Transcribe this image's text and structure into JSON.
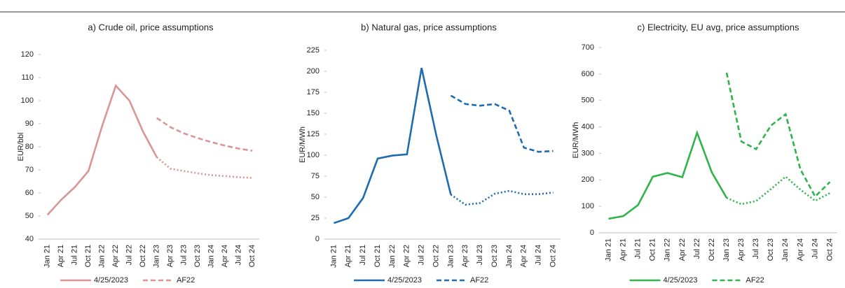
{
  "chart_data": [
    {
      "type": "line",
      "title": "a) Crude oil, price assumptions",
      "y_label": "EUR/bbl",
      "categories": [
        "Jan 21",
        "Apr 21",
        "Jul 21",
        "Oct 21",
        "Jan 22",
        "Apr 22",
        "Jul 22",
        "Oct 22",
        "Jan 23",
        "Apr 23",
        "Jul 23",
        "Oct 23",
        "Jan 24",
        "Apr 24",
        "Jul 24",
        "Oct 24"
      ],
      "ylim": [
        40,
        120
      ],
      "yticks": [
        40,
        50,
        60,
        70,
        80,
        90,
        100,
        110,
        120
      ],
      "series": [
        {
          "name": "4/25/2023",
          "color": "#d99694",
          "style": "solid",
          "dotted_from": 8,
          "values": [
            50.5,
            57,
            62.5,
            69.5,
            89,
            106.5,
            100,
            86.5,
            75.5,
            70.5,
            69.5,
            68.5,
            67.7,
            67.3,
            66.8,
            66.5
          ]
        },
        {
          "name": "AF22",
          "color": "#d99694",
          "style": "dashed",
          "values": [
            null,
            null,
            null,
            null,
            null,
            null,
            null,
            null,
            92.5,
            88.5,
            85.8,
            83.8,
            82,
            80.5,
            79.2,
            78.3
          ]
        }
      ]
    },
    {
      "type": "line",
      "title": "b) Natural gas, price assumptions",
      "y_label": "EUR/MWh",
      "categories": [
        "Jan 21",
        "Apr 21",
        "Jul 21",
        "Oct 21",
        "Jan 22",
        "Apr 22",
        "Jul 22",
        "Oct 22",
        "Jan 23",
        "Apr 23",
        "Jul 23",
        "Oct 23",
        "Jan 24",
        "Apr 24",
        "Jul 24",
        "Oct 24"
      ],
      "ylim": [
        0,
        225
      ],
      "yticks": [
        0,
        25,
        50,
        75,
        100,
        125,
        150,
        175,
        200,
        225
      ],
      "series": [
        {
          "name": "4/25/2023",
          "color": "#1f6bb0",
          "style": "solid",
          "dotted_from": 8,
          "values": [
            19,
            25,
            49,
            96,
            99.5,
            101,
            204,
            124,
            53,
            41,
            43,
            54,
            57.5,
            53.5,
            53.5,
            55.5
          ]
        },
        {
          "name": "AF22",
          "color": "#1f6bb0",
          "style": "dashed",
          "values": [
            null,
            null,
            null,
            null,
            null,
            null,
            null,
            null,
            171,
            161,
            159,
            161,
            153,
            109,
            104,
            105
          ]
        }
      ]
    },
    {
      "type": "line",
      "title": "c) Electricity, EU avg, price assumptions",
      "y_label": "EUR/MWh",
      "categories": [
        "Jan 21",
        "Apr 21",
        "Jul 21",
        "Oct 21",
        "Jan 22",
        "Apr 22",
        "Jul 22",
        "Oct 22",
        "Jan 23",
        "Apr 23",
        "Jul 23",
        "Oct 23",
        "Jan 24",
        "Apr 24",
        "Jul 24",
        "Oct 24"
      ],
      "ylim": [
        0,
        700
      ],
      "yticks": [
        0,
        100,
        200,
        300,
        400,
        500,
        600,
        700
      ],
      "series": [
        {
          "name": "4/25/2023",
          "color": "#2fb34a",
          "style": "solid",
          "dotted_from": 8,
          "values": [
            53,
            63,
            105,
            212,
            226,
            210,
            378,
            228,
            132,
            108,
            120,
            165,
            212,
            163,
            121,
            150
          ]
        },
        {
          "name": "AF22",
          "color": "#2fb34a",
          "style": "dashed",
          "values": [
            null,
            null,
            null,
            null,
            null,
            null,
            null,
            null,
            605,
            345,
            316,
            405,
            448,
            240,
            137,
            192
          ]
        }
      ]
    }
  ]
}
